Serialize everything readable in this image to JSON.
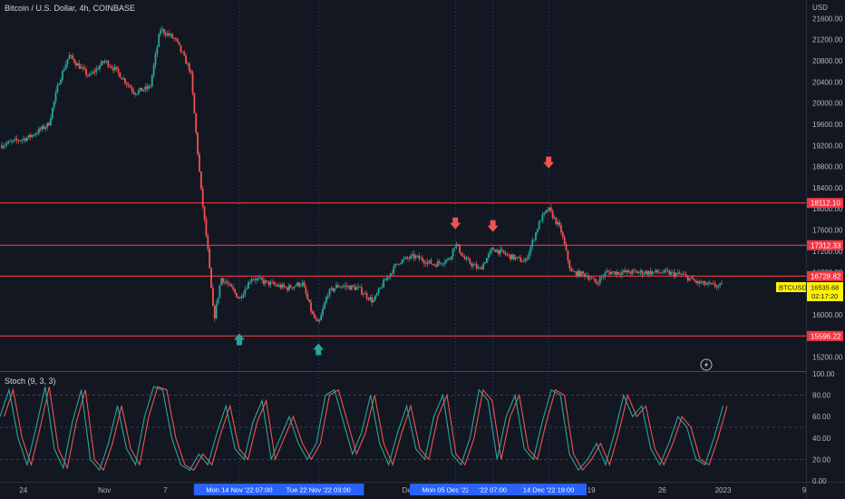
{
  "header": {
    "title": "Bitcoin / U.S. Dollar, 4h, COINBASE",
    "currency": "USD"
  },
  "price_panel": {
    "current_symbol": "BTCUSD",
    "current_price": "16535.68",
    "countdown": "02:17:20"
  },
  "stoch_panel": {
    "title": "Stoch (9, 3, 3)"
  },
  "time_tags": [
    {
      "label": "Mon 14 Nov '22   07:00",
      "day": 21.3
    },
    {
      "label": "Tue 22 Nov '22   03:00",
      "day": 29.1
    },
    {
      "label": "Mon 05 Dec '22   15:00",
      "day": 42.6
    },
    {
      "label": "'22   07:00",
      "day": 46.3
    },
    {
      "label": "14 Dec '22   19:00",
      "day": 51.8
    }
  ],
  "colors": {
    "background": "#131722",
    "up": "#26a69a",
    "down": "#ef5350",
    "level_line": "#f23645",
    "k_line": "#26a69a",
    "d_line": "#ef5350",
    "current_price_tag": "#fff200",
    "time_tag": "#2962ff"
  },
  "chart_data": [
    {
      "type": "candlestick",
      "x_unit": "days since Oct 24 2022",
      "xlim": [
        -2.3,
        77
      ],
      "x_ticks": [
        {
          "label": "24",
          "x": 0
        },
        {
          "label": "Nov",
          "x": 8
        },
        {
          "label": "7",
          "x": 14
        },
        {
          "label": "26",
          "x": 33
        },
        {
          "label": "Dec",
          "x": 38
        },
        {
          "label": "19",
          "x": 56
        },
        {
          "label": "26",
          "x": 63
        },
        {
          "label": "2023",
          "x": 69
        },
        {
          "label": "9",
          "x": 77
        }
      ],
      "ylim": [
        14950,
        21950
      ],
      "y_ticks": [
        15200,
        15600,
        16000,
        16400,
        16800,
        17200,
        17600,
        18000,
        18400,
        18800,
        19200,
        19600,
        20000,
        20400,
        20800,
        21200,
        21600
      ],
      "grid": false,
      "levels": [
        18112.1,
        17312.33,
        16728.82,
        15596.22
      ],
      "key_points": [
        {
          "x": -2.3,
          "y": 19200
        },
        {
          "x": 0.5,
          "y": 19350
        },
        {
          "x": 2.5,
          "y": 19600
        },
        {
          "x": 3.5,
          "y": 20400
        },
        {
          "x": 4.5,
          "y": 20900
        },
        {
          "x": 6.5,
          "y": 20500
        },
        {
          "x": 8,
          "y": 20800
        },
        {
          "x": 9,
          "y": 20650
        },
        {
          "x": 11,
          "y": 20200
        },
        {
          "x": 12.5,
          "y": 20300
        },
        {
          "x": 13.5,
          "y": 21400
        },
        {
          "x": 15,
          "y": 21200
        },
        {
          "x": 16.5,
          "y": 20600
        },
        {
          "x": 17.5,
          "y": 18400
        },
        {
          "x": 18.2,
          "y": 17200
        },
        {
          "x": 18.8,
          "y": 15900
        },
        {
          "x": 19.5,
          "y": 16700
        },
        {
          "x": 20.5,
          "y": 16500
        },
        {
          "x": 21.3,
          "y": 16300
        },
        {
          "x": 22.5,
          "y": 16700
        },
        {
          "x": 24,
          "y": 16600
        },
        {
          "x": 26,
          "y": 16500
        },
        {
          "x": 27.5,
          "y": 16600
        },
        {
          "x": 28.5,
          "y": 16000
        },
        {
          "x": 29.1,
          "y": 15800
        },
        {
          "x": 30,
          "y": 16400
        },
        {
          "x": 31,
          "y": 16550
        },
        {
          "x": 33,
          "y": 16500
        },
        {
          "x": 34.5,
          "y": 16250
        },
        {
          "x": 35.5,
          "y": 16600
        },
        {
          "x": 37,
          "y": 17000
        },
        {
          "x": 38.5,
          "y": 17100
        },
        {
          "x": 40.5,
          "y": 16950
        },
        {
          "x": 42,
          "y": 17050
        },
        {
          "x": 42.6,
          "y": 17350
        },
        {
          "x": 43.5,
          "y": 17050
        },
        {
          "x": 45,
          "y": 16850
        },
        {
          "x": 46.3,
          "y": 17250
        },
        {
          "x": 48,
          "y": 17100
        },
        {
          "x": 49.5,
          "y": 17000
        },
        {
          "x": 51,
          "y": 17800
        },
        {
          "x": 51.8,
          "y": 18000
        },
        {
          "x": 53,
          "y": 17600
        },
        {
          "x": 54,
          "y": 16800
        },
        {
          "x": 55.5,
          "y": 16750
        },
        {
          "x": 56.5,
          "y": 16600
        },
        {
          "x": 57.5,
          "y": 16800
        },
        {
          "x": 60,
          "y": 16800
        },
        {
          "x": 63,
          "y": 16800
        },
        {
          "x": 65,
          "y": 16750
        },
        {
          "x": 66.5,
          "y": 16600
        },
        {
          "x": 68,
          "y": 16550
        },
        {
          "x": 69,
          "y": 16535
        }
      ],
      "markers": [
        {
          "type": "down-arrow",
          "x": 42.6,
          "y": 17700
        },
        {
          "type": "down-arrow",
          "x": 46.3,
          "y": 17650
        },
        {
          "type": "down-arrow",
          "x": 51.8,
          "y": 18850
        },
        {
          "type": "up-arrow",
          "x": 21.3,
          "y": 15560
        },
        {
          "type": "up-arrow",
          "x": 29.1,
          "y": 15370
        }
      ]
    },
    {
      "type": "line",
      "title": "Stoch (9, 3, 3)",
      "ylim": [
        0,
        100
      ],
      "y_ticks": [
        0,
        20,
        40,
        60,
        80,
        100
      ],
      "guide_lines": [
        20,
        50,
        80
      ],
      "series": [
        {
          "values": [
            60,
            85,
            40,
            15,
            50,
            88,
            30,
            12,
            55,
            85,
            20,
            10,
            35,
            70,
            30,
            15,
            60,
            88,
            85,
            40,
            15,
            10,
            25,
            15,
            45,
            70,
            30,
            20,
            55,
            75,
            20,
            40,
            60,
            35,
            20,
            35,
            80,
            85,
            55,
            25,
            45,
            80,
            35,
            15,
            45,
            70,
            30,
            20,
            60,
            80,
            25,
            15,
            40,
            85,
            75,
            20,
            60,
            80,
            30,
            20,
            55,
            85,
            80,
            25,
            10,
            20,
            35,
            15,
            45,
            80,
            60,
            70,
            30,
            15,
            35,
            60,
            50,
            20,
            15,
            40,
            70
          ]
        }
      ]
    }
  ]
}
